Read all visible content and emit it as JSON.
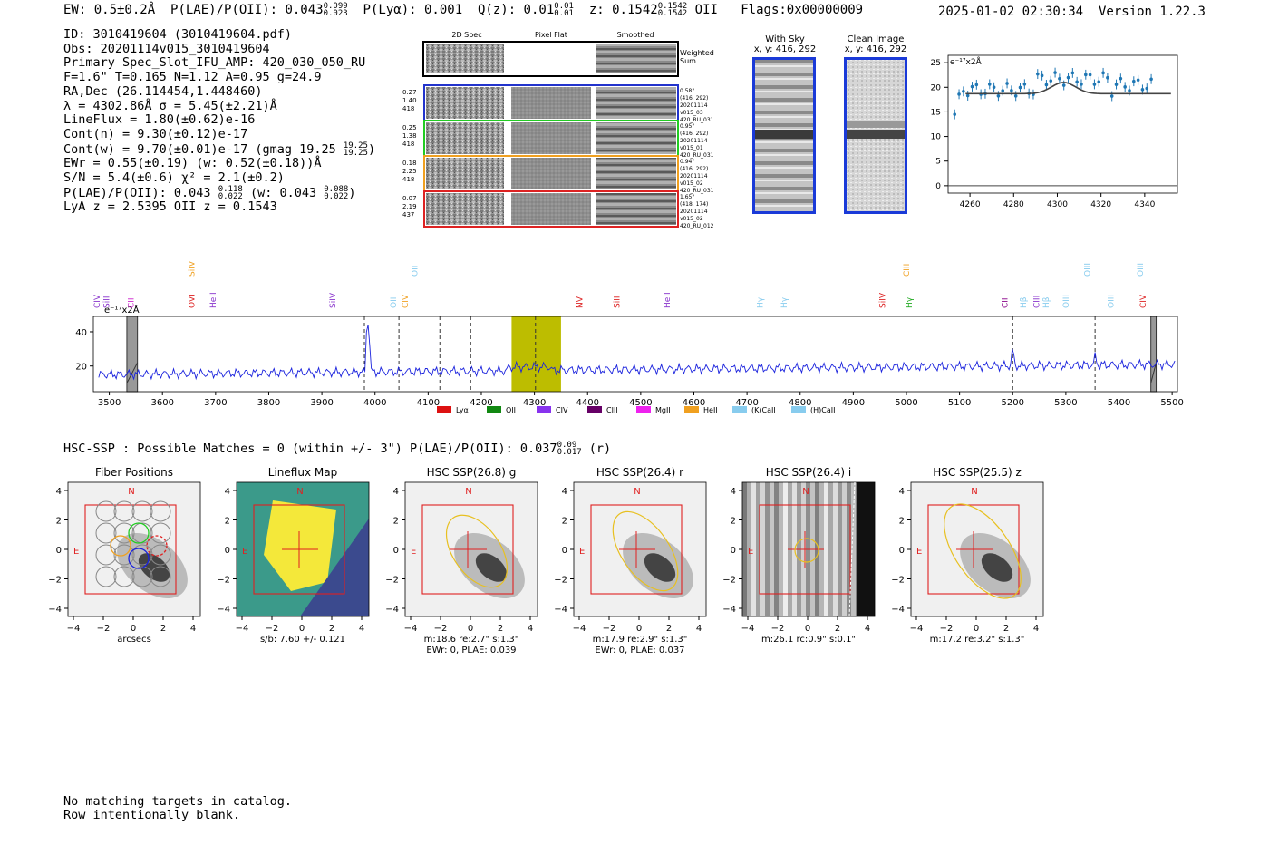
{
  "header": {
    "ew": "EW: 0.5±0.2Å",
    "plae_label": "P(LAE)/P(OII): 0.043",
    "plae_hi": "0.099",
    "plae_lo": "0.023",
    "plya": "P(Lyα): 0.001",
    "qz_label": "Q(z): 0.01",
    "qz_hi": "0.01",
    "qz_lo": "0.01",
    "z_label": "z: 0.1542",
    "z_hi": "0.1542",
    "z_lo": "0.1542",
    "z_line": "OII",
    "flags": "Flags:0x00000009",
    "timestamp": "2025-01-02 02:30:34",
    "version": "Version 1.22.3"
  },
  "meta": {
    "id": "ID: 3010419604 (3010419604.pdf)",
    "obs": "Obs: 20201114v015_3010419604",
    "primary": "Primary Spec_Slot_IFU_AMP: 420_030_050_RU",
    "fit": "F=1.6\"  T=0.165  N=1.12  A=0.95  g=24.9",
    "radec": "RA,Dec (26.114454,1.448460)",
    "lambda": "λ = 4302.86Å   σ = 5.45(±2.21)Å",
    "lineflux": "LineFlux = 1.80(±0.62)e-16",
    "cont_n": "Cont(n) = 9.30(±0.12)e-17",
    "cont_w": "Cont(w) = 9.70(±0.01)e-17 (gmag 19.25",
    "cont_w_hi": "19.25",
    "cont_w_lo": "19.25",
    "ewr": "EWr = 0.55(±0.19) (w: 0.52(±0.18))Å",
    "sn": "S/N = 5.4(±0.6)  χ² = 2.1(±0.2)",
    "plae": "P(LAE)/P(OII): 0.043",
    "plae_hi": "0.118",
    "plae_lo": "0.022",
    "plae_w": "(w: 0.043",
    "plae_w_hi": "0.088",
    "plae_w_lo": "0.022",
    "lya_z": "LyA z = 2.5395  OII z = 0.1543"
  },
  "spec2d": {
    "col_labels": [
      "2D Spec",
      "Pixel Flat",
      "Smoothed"
    ],
    "weighted_sum": [
      "Weighted",
      "Sum"
    ],
    "rows": [
      {
        "left": [
          "0.27",
          "1.40",
          "418"
        ],
        "right": [
          "0.58\"",
          "(416, 292)",
          "20201114",
          "v015_03",
          "420_RU_031"
        ],
        "color": "#2233cc"
      },
      {
        "left": [
          "0.25",
          "1.38",
          "418"
        ],
        "right": [
          "0.95\"",
          "(416, 292)",
          "20201114",
          "v015_01",
          "420_RU_031"
        ],
        "color": "#22cc22"
      },
      {
        "left": [
          "0.18",
          "2.25",
          "418"
        ],
        "right": [
          "0.94\"",
          "(416, 292)",
          "20201114",
          "v015_02",
          "420_RU_031"
        ],
        "color": "#f0a020"
      },
      {
        "left": [
          "0.07",
          "2.19",
          "437"
        ],
        "right": [
          "1.65\"",
          "(418, 174)",
          "20201114",
          "v015_02",
          "420_RU_012"
        ],
        "color": "#dd2222"
      }
    ]
  },
  "cutouts": {
    "with_sky": [
      "With Sky",
      "x, y: 416, 292"
    ],
    "clean": [
      "Clean Image",
      "x, y: 416, 292"
    ]
  },
  "zoom_plot": {
    "unit": "e⁻¹⁷x2Å",
    "yticks": [
      "25",
      "20",
      "15",
      "10",
      "5",
      "0"
    ],
    "xticks": [
      "4260",
      "4280",
      "4300",
      "4320",
      "4340"
    ]
  },
  "full_spectrum": {
    "unit": "e⁻¹⁷x2Å",
    "yticks": [
      "40",
      "20"
    ],
    "xticks": [
      "3500",
      "3600",
      "3700",
      "3800",
      "3900",
      "4000",
      "4100",
      "4200",
      "4300",
      "4400",
      "4500",
      "4600",
      "4700",
      "4800",
      "4900",
      "5000",
      "5100",
      "5200",
      "5300",
      "5400",
      "5500"
    ],
    "line_labels": [
      {
        "text": "CIV",
        "color": "#8833cc"
      },
      {
        "text": "SiII",
        "color": "#8833cc"
      },
      {
        "text": "CII",
        "color": "#cc22cc"
      },
      {
        "text": "SiIV",
        "color": "#f0a020"
      },
      {
        "text": "OVI",
        "color": "#dd2222"
      },
      {
        "text": "HeII",
        "color": "#8833cc"
      },
      {
        "text": "SiIV",
        "color": "#8833cc"
      },
      {
        "text": "OII",
        "color": "#88ccee"
      },
      {
        "text": "CIV",
        "color": "#f0a020"
      },
      {
        "text": "OII",
        "color": "#88ccee"
      },
      {
        "text": "NV",
        "color": "#dd2222"
      },
      {
        "text": "SiII",
        "color": "#dd2222"
      },
      {
        "text": "HeII",
        "color": "#8833cc"
      },
      {
        "text": "Hγ",
        "color": "#88ccee"
      },
      {
        "text": "Hγ",
        "color": "#88ccee"
      },
      {
        "text": "SiIV",
        "color": "#dd2222"
      },
      {
        "text": "CIII",
        "color": "#f0a020"
      },
      {
        "text": "Hγ",
        "color": "#22aa22"
      },
      {
        "text": "CII",
        "color": "#880088"
      },
      {
        "text": "Hβ",
        "color": "#88ccee"
      },
      {
        "text": "CIII",
        "color": "#8833cc"
      },
      {
        "text": "Hβ",
        "color": "#88ccee"
      },
      {
        "text": "OIII",
        "color": "#88ccee"
      },
      {
        "text": "OIII",
        "color": "#88ccee"
      },
      {
        "text": "OIII",
        "color": "#88ccee"
      },
      {
        "text": "OIII",
        "color": "#88ccee"
      },
      {
        "text": "CIV",
        "color": "#dd2222"
      }
    ],
    "legend": [
      {
        "label": "Lyα",
        "color": "#dd1111"
      },
      {
        "label": "OII",
        "color": "#118811"
      },
      {
        "label": "CIV",
        "color": "#8833ee"
      },
      {
        "label": "CIII",
        "color": "#660066"
      },
      {
        "label": "MgII",
        "color": "#ee22ee"
      },
      {
        "label": "HeII",
        "color": "#f0a020"
      },
      {
        "label": "(K)CaII",
        "color": "#88ccee"
      },
      {
        "label": "(H)CaII",
        "color": "#88ccee"
      }
    ]
  },
  "hsc_line": {
    "text": "HSC-SSP : Possible Matches = 0 (within +/- 3\")  P(LAE)/P(OII): 0.037",
    "hi": "0.09",
    "lo": "0.017",
    "band": "(r)"
  },
  "stamps": [
    {
      "title": "Fiber Positions",
      "caption1": "arcsecs",
      "caption2": ""
    },
    {
      "title": "Lineflux Map",
      "caption1": "s/b: 7.60 +/- 0.121",
      "caption2": ""
    },
    {
      "title": "HSC SSP(26.8) g",
      "caption1": "m:18.6  re:2.7\"  s:1.3\"",
      "caption2": "EWr: 0, PLAE: 0.039"
    },
    {
      "title": "HSC SSP(26.4) r",
      "caption1": "m:17.9  re:2.9\"  s:1.3\"",
      "caption2": "EWr: 0, PLAE: 0.037"
    },
    {
      "title": "HSC SSP(26.4) i",
      "caption1": "m:26.1 rc:0.9\"  s:0.1\"",
      "caption2": ""
    },
    {
      "title": "HSC SSP(25.5) z",
      "caption1": "m:17.2  re:3.2\"  s:1.3\"",
      "caption2": ""
    }
  ],
  "stamp_axes": {
    "yticks": [
      "4",
      "2",
      "0",
      "−2",
      "−4"
    ],
    "xticks": [
      "−4",
      "−2",
      "0",
      "2",
      "4"
    ],
    "north": "N",
    "east": "E"
  },
  "footer": {
    "line1": "No matching targets in catalog.",
    "line2": "Row intentionally blank."
  }
}
